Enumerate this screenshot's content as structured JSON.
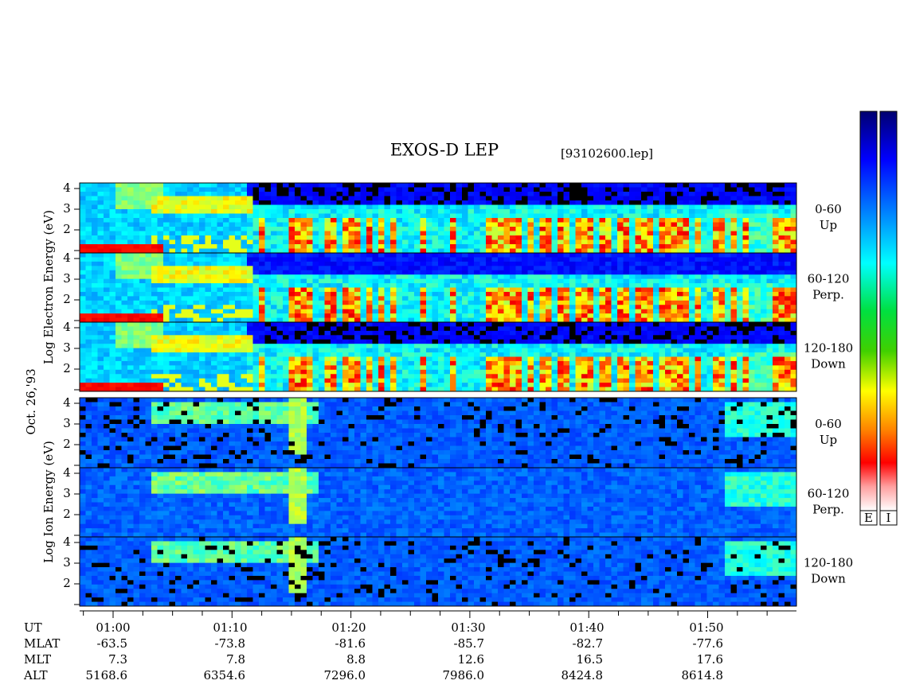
{
  "header": {
    "title": "EXOS-D LEP",
    "file": "[93102600.lep]"
  },
  "date": "Oct. 26,'93",
  "electron": {
    "axis_label": "Log Electron Energy (eV)",
    "panels": [
      {
        "pitch": "0-60",
        "direction": "Up",
        "yticks": [
          "4",
          "3",
          "2"
        ]
      },
      {
        "pitch": "60-120",
        "direction": "Perp.",
        "yticks": [
          "4",
          "3",
          "2"
        ]
      },
      {
        "pitch": "120-180",
        "direction": "Down",
        "yticks": [
          "4",
          "3",
          "2"
        ]
      }
    ]
  },
  "ion": {
    "axis_label": "Log Ion Energy (eV)",
    "panels": [
      {
        "pitch": "0-60",
        "direction": "Up",
        "yticks": [
          "4",
          "3",
          "2"
        ]
      },
      {
        "pitch": "60-120",
        "direction": "Perp.",
        "yticks": [
          "4",
          "3",
          "2"
        ]
      },
      {
        "pitch": "120-180",
        "direction": "Down",
        "yticks": [
          "4",
          "3",
          "2"
        ]
      }
    ]
  },
  "colorbar": {
    "labels": [
      "E",
      "I"
    ]
  },
  "x_axis": {
    "rows": [
      {
        "label": "UT",
        "values": [
          "01:00",
          "01:10",
          "01:20",
          "01:30",
          "01:40",
          "01:50"
        ]
      },
      {
        "label": "MLAT",
        "values": [
          "-63.5",
          "-73.8",
          "-81.6",
          "-85.7",
          "-82.7",
          "-77.6"
        ]
      },
      {
        "label": "MLT",
        "values": [
          "7.3",
          "7.8",
          "8.8",
          "12.6",
          "16.5",
          "17.6"
        ]
      },
      {
        "label": "ALT",
        "values": [
          "5168.6",
          "6354.6",
          "7296.0",
          "7986.0",
          "8424.8",
          "8614.8"
        ]
      }
    ]
  }
}
